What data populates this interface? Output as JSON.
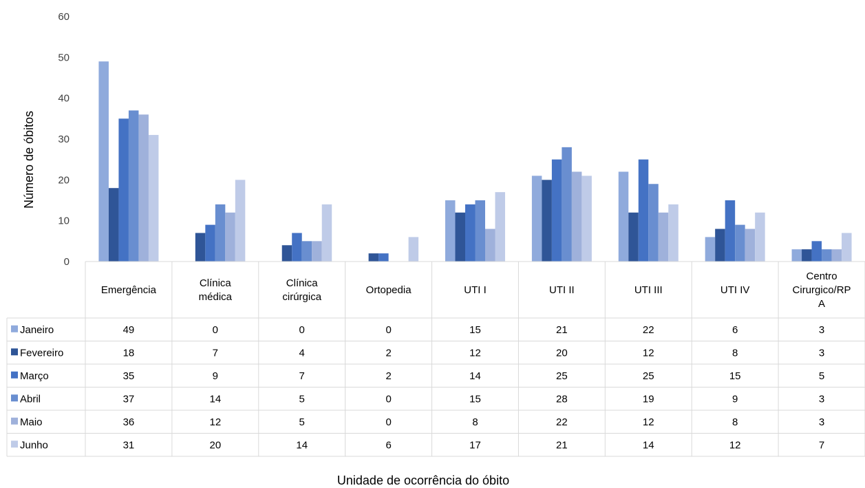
{
  "chart_data": {
    "type": "bar",
    "xlabel": "Unidade de ocorrência do óbito",
    "ylabel": "Número de óbitos",
    "ylim": [
      0,
      60
    ],
    "yticks": [
      0,
      10,
      20,
      30,
      40,
      50,
      60
    ],
    "grid": false,
    "legend": "data-table-left",
    "categories": [
      [
        "Emergência"
      ],
      [
        "Clínica",
        "médica"
      ],
      [
        "Clínica",
        "cirúrgica"
      ],
      [
        "Ortopedia"
      ],
      [
        "UTI I"
      ],
      [
        "UTI II"
      ],
      [
        "UTI III"
      ],
      [
        "UTI IV"
      ],
      [
        "Centro",
        "Cirurgico/RP",
        "A"
      ]
    ],
    "series": [
      {
        "name": "Janeiro",
        "color": "#8faadc",
        "values": [
          49,
          0,
          0,
          0,
          15,
          21,
          22,
          6,
          3
        ]
      },
      {
        "name": "Fevereiro",
        "color": "#2f5597",
        "values": [
          18,
          7,
          4,
          2,
          12,
          20,
          12,
          8,
          3
        ]
      },
      {
        "name": "Março",
        "color": "#4472c4",
        "values": [
          35,
          9,
          7,
          2,
          14,
          25,
          25,
          15,
          5
        ]
      },
      {
        "name": "Abril",
        "color": "#698ed0",
        "values": [
          37,
          14,
          5,
          0,
          15,
          28,
          19,
          9,
          3
        ]
      },
      {
        "name": "Maio",
        "color": "#9fb1db",
        "values": [
          36,
          12,
          5,
          0,
          8,
          22,
          12,
          8,
          3
        ]
      },
      {
        "name": "Junho",
        "color": "#bfcbe8",
        "values": [
          31,
          20,
          14,
          6,
          17,
          21,
          14,
          12,
          7
        ]
      }
    ]
  }
}
